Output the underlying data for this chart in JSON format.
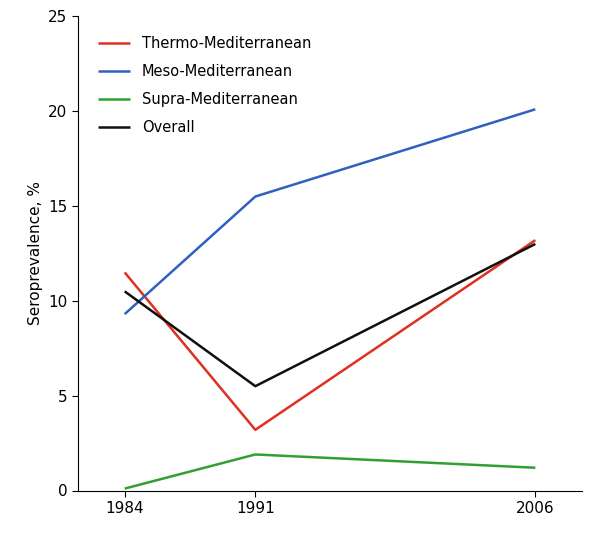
{
  "years": [
    1984,
    1991,
    2006
  ],
  "series": {
    "Thermo-Mediterranean": {
      "values": [
        11.5,
        3.2,
        13.2
      ],
      "color": "#e03020",
      "linewidth": 1.8
    },
    "Meso-Mediterranean": {
      "values": [
        9.3,
        15.5,
        20.1
      ],
      "color": "#3060c0",
      "linewidth": 1.8
    },
    "Supra-Mediterranean": {
      "values": [
        0.1,
        1.9,
        1.2
      ],
      "color": "#30a030",
      "linewidth": 1.8
    },
    "Overall": {
      "values": [
        10.5,
        5.5,
        13.0
      ],
      "color": "#101010",
      "linewidth": 1.8
    }
  },
  "ylabel": "Seroprevalence, %",
  "ylim": [
    0,
    25
  ],
  "yticks": [
    0,
    5,
    10,
    15,
    20,
    25
  ],
  "xticks": [
    1984,
    1991,
    2006
  ],
  "xlim": [
    1981.5,
    2008.5
  ],
  "legend_order": [
    "Thermo-Mediterranean",
    "Meso-Mediterranean",
    "Supra-Mediterranean",
    "Overall"
  ],
  "background_color": "#ffffff",
  "axis_fontsize": 11,
  "legend_fontsize": 10.5
}
